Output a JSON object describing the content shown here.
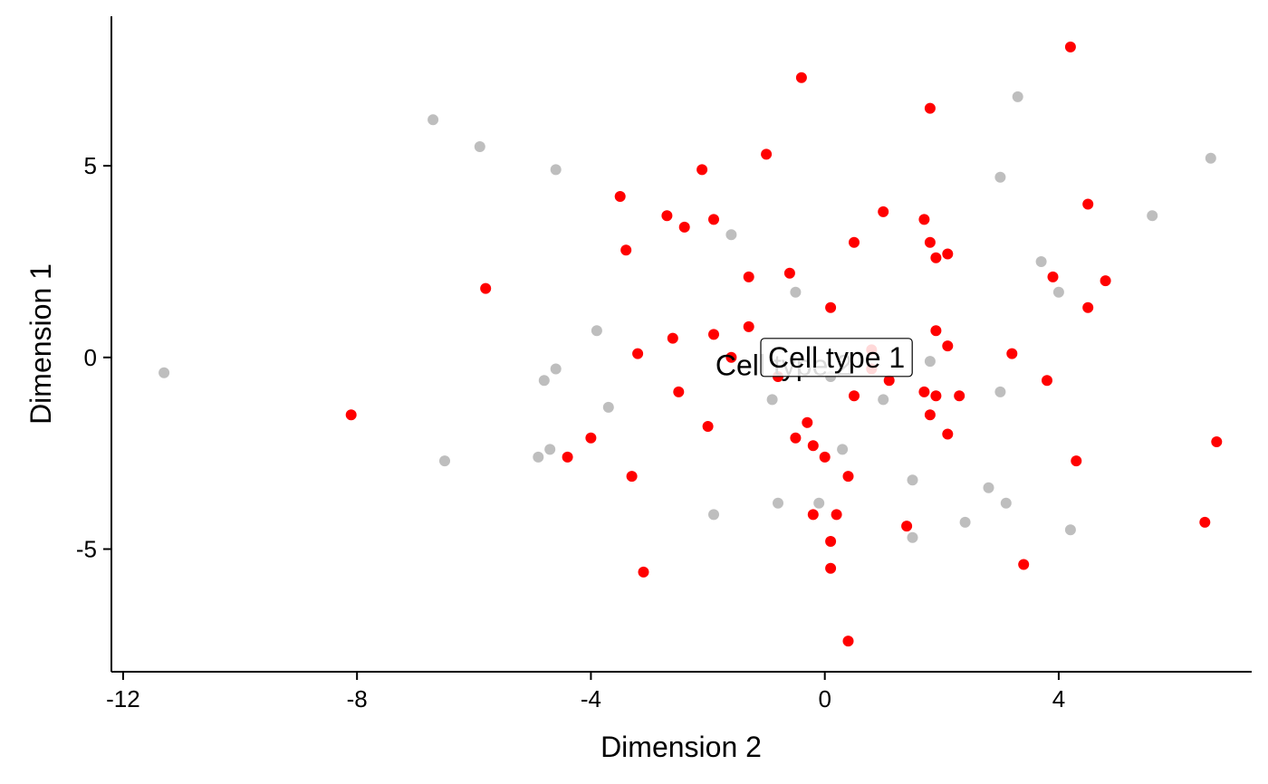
{
  "chart_data": {
    "type": "scatter",
    "title": "",
    "xlabel": "Dimension 2",
    "ylabel": "Dimension 1",
    "xlim": [
      -12.2,
      7.3
    ],
    "ylim": [
      -8.2,
      8.9
    ],
    "xticks": [
      -12,
      -8,
      -4,
      0,
      4
    ],
    "yticks": [
      -5,
      0,
      5
    ],
    "xtick_labels": [
      "-12",
      "-8",
      "-4",
      "0",
      "4"
    ],
    "ytick_labels": [
      "-5",
      "0",
      "5"
    ],
    "grid": false,
    "colors": {
      "series_1": "#ff0000",
      "series_2": "#bebebe"
    },
    "series": [
      {
        "color": "#ff0000",
        "points": [
          [
            4.2,
            8.1
          ],
          [
            -0.4,
            7.3
          ],
          [
            1.8,
            6.5
          ],
          [
            -1.0,
            5.3
          ],
          [
            -2.1,
            4.9
          ],
          [
            -3.5,
            4.2
          ],
          [
            4.5,
            4.0
          ],
          [
            1.0,
            3.8
          ],
          [
            -2.7,
            3.7
          ],
          [
            -1.9,
            3.6
          ],
          [
            1.7,
            3.6
          ],
          [
            -2.4,
            3.4
          ],
          [
            0.5,
            3.0
          ],
          [
            1.8,
            3.0
          ],
          [
            -3.4,
            2.8
          ],
          [
            2.1,
            2.7
          ],
          [
            1.9,
            2.6
          ],
          [
            -0.6,
            2.2
          ],
          [
            -1.3,
            2.1
          ],
          [
            3.9,
            2.1
          ],
          [
            4.8,
            2.0
          ],
          [
            -5.8,
            1.8
          ],
          [
            0.1,
            1.3
          ],
          [
            4.5,
            1.3
          ],
          [
            -1.3,
            0.8
          ],
          [
            1.9,
            0.7
          ],
          [
            -1.9,
            0.6
          ],
          [
            -2.6,
            0.5
          ],
          [
            2.1,
            0.3
          ],
          [
            -3.2,
            0.1
          ],
          [
            3.2,
            0.1
          ],
          [
            -1.6,
            0.0
          ],
          [
            0.8,
            0.2
          ],
          [
            0.8,
            -0.3
          ],
          [
            -0.8,
            -0.5
          ],
          [
            3.8,
            -0.6
          ],
          [
            1.1,
            -0.6
          ],
          [
            1.7,
            -0.9
          ],
          [
            -2.5,
            -0.9
          ],
          [
            1.9,
            -1.0
          ],
          [
            0.5,
            -1.0
          ],
          [
            2.3,
            -1.0
          ],
          [
            -8.1,
            -1.5
          ],
          [
            1.8,
            -1.5
          ],
          [
            -2.0,
            -1.8
          ],
          [
            -0.3,
            -1.7
          ],
          [
            2.1,
            -2.0
          ],
          [
            -0.5,
            -2.1
          ],
          [
            -4.0,
            -2.1
          ],
          [
            -0.2,
            -2.3
          ],
          [
            -4.4,
            -2.6
          ],
          [
            0.0,
            -2.6
          ],
          [
            4.3,
            -2.7
          ],
          [
            6.7,
            -2.2
          ],
          [
            -3.3,
            -3.1
          ],
          [
            0.4,
            -3.1
          ],
          [
            -0.2,
            -4.1
          ],
          [
            0.2,
            -4.1
          ],
          [
            1.4,
            -4.4
          ],
          [
            6.5,
            -4.3
          ],
          [
            0.1,
            -4.8
          ],
          [
            3.4,
            -5.4
          ],
          [
            0.1,
            -5.5
          ],
          [
            -3.1,
            -5.6
          ],
          [
            0.4,
            -7.4
          ]
        ]
      },
      {
        "color": "#bebebe",
        "points": [
          [
            3.3,
            6.8
          ],
          [
            -6.7,
            6.2
          ],
          [
            -5.9,
            5.5
          ],
          [
            -4.6,
            4.9
          ],
          [
            6.6,
            5.2
          ],
          [
            3.0,
            4.7
          ],
          [
            5.6,
            3.7
          ],
          [
            -1.6,
            3.2
          ],
          [
            3.7,
            2.5
          ],
          [
            4.0,
            1.7
          ],
          [
            -0.5,
            1.7
          ],
          [
            -3.9,
            0.7
          ],
          [
            1.8,
            -0.1
          ],
          [
            -11.3,
            -0.4
          ],
          [
            -4.6,
            -0.3
          ],
          [
            -4.8,
            -0.6
          ],
          [
            0.1,
            -0.5
          ],
          [
            3.0,
            -0.9
          ],
          [
            -0.9,
            -1.1
          ],
          [
            1.0,
            -1.1
          ],
          [
            -3.7,
            -1.3
          ],
          [
            -4.7,
            -2.4
          ],
          [
            -4.9,
            -2.6
          ],
          [
            -6.5,
            -2.7
          ],
          [
            0.3,
            -2.4
          ],
          [
            1.5,
            -3.2
          ],
          [
            2.8,
            -3.4
          ],
          [
            -0.8,
            -3.8
          ],
          [
            -0.1,
            -3.8
          ],
          [
            3.1,
            -3.8
          ],
          [
            -1.9,
            -4.1
          ],
          [
            2.4,
            -4.3
          ],
          [
            4.2,
            -4.5
          ],
          [
            1.5,
            -4.7
          ]
        ]
      }
    ],
    "annotations": [
      {
        "text": "Cell type 1",
        "x": 0.2,
        "y": 0.0,
        "boxed": true,
        "color": "#000000"
      },
      {
        "text": "Cell type 2",
        "x": -0.7,
        "y": -0.2,
        "boxed": false,
        "color": "#000000"
      }
    ]
  }
}
